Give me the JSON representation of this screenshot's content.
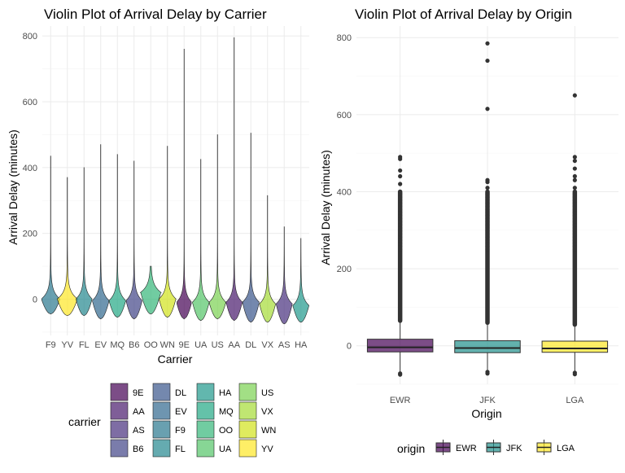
{
  "chart_data": [
    {
      "type": "violin",
      "title": "Violin Plot of Arrival Delay by Carrier",
      "xlabel": "Carrier",
      "ylabel": "Arrival Delay (minutes)",
      "ylim": [
        -110,
        830
      ],
      "yticks": [
        0,
        200,
        400,
        600,
        800
      ],
      "grid": true,
      "categories": [
        "F9",
        "YV",
        "FL",
        "EV",
        "MQ",
        "B6",
        "OO",
        "WN",
        "9E",
        "UA",
        "US",
        "AA",
        "DL",
        "VX",
        "AS",
        "HA"
      ],
      "min": [
        -45,
        -50,
        -50,
        -60,
        -55,
        -60,
        -45,
        -55,
        -60,
        -65,
        -60,
        -65,
        -70,
        -70,
        -75,
        -70
      ],
      "max": [
        435,
        370,
        400,
        470,
        440,
        420,
        100,
        465,
        760,
        425,
        500,
        795,
        505,
        315,
        220,
        185
      ],
      "mode": [
        0,
        0,
        0,
        -5,
        -5,
        -5,
        20,
        0,
        -10,
        -10,
        -10,
        -10,
        -10,
        -15,
        -15,
        -20
      ],
      "max_width": [
        0.55,
        0.6,
        0.48,
        0.5,
        0.5,
        0.48,
        0.6,
        0.5,
        0.45,
        0.5,
        0.5,
        0.48,
        0.5,
        0.48,
        0.48,
        0.48
      ],
      "legend": {
        "title": "carrier",
        "position": "bottom",
        "columns": [
          [
            "9E",
            "AA",
            "AS",
            "B6"
          ],
          [
            "DL",
            "EV",
            "F9",
            "FL"
          ],
          [
            "HA",
            "MQ",
            "OO",
            "UA"
          ],
          [
            "US",
            "VX",
            "WN",
            "YV"
          ]
        ],
        "colors": {
          "9E": "#440154",
          "AA": "#481A6C",
          "AS": "#472F7D",
          "B6": "#414487",
          "DL": "#39568C",
          "EV": "#31688E",
          "F9": "#2A788E",
          "FL": "#23888E",
          "HA": "#1F988B",
          "MQ": "#22A884",
          "OO": "#35B779",
          "UA": "#54C568",
          "US": "#7AD151",
          "VX": "#A5DB36",
          "WN": "#D2E21B",
          "YV": "#FDE725"
        },
        "alpha": 0.7
      }
    },
    {
      "type": "box",
      "title": "Violin Plot of Arrival Delay by Origin",
      "xlabel": "Origin",
      "ylabel": "Arrival Delay (minutes)",
      "ylim": [
        -100,
        830
      ],
      "yticks": [
        0,
        200,
        400,
        600,
        800
      ],
      "grid": true,
      "categories": [
        "EWR",
        "JFK",
        "LGA"
      ],
      "q1": [
        -16,
        -18,
        -17
      ],
      "median": [
        -4,
        -6,
        -7
      ],
      "q3": [
        17,
        13,
        12
      ],
      "whisker_low": [
        -70,
        -65,
        -68
      ],
      "whisker_high": [
        65,
        60,
        55
      ],
      "outlier_dense_top": [
        400,
        400,
        400
      ],
      "outliers": [
        [
          420,
          440,
          455,
          485,
          490
        ],
        [
          410,
          425,
          430,
          615,
          740,
          785
        ],
        [
          410,
          430,
          440,
          460,
          480,
          490,
          650
        ]
      ],
      "outliers_low": [
        [
          -72,
          -75
        ],
        [
          -68,
          -72
        ],
        [
          -70,
          -74
        ]
      ],
      "colors": {
        "EWR": "#440154",
        "JFK": "#21908C",
        "LGA": "#FDE725"
      },
      "alpha": 0.7,
      "legend": {
        "title": "origin",
        "position": "bottom",
        "items": [
          "EWR",
          "JFK",
          "LGA"
        ]
      }
    }
  ]
}
